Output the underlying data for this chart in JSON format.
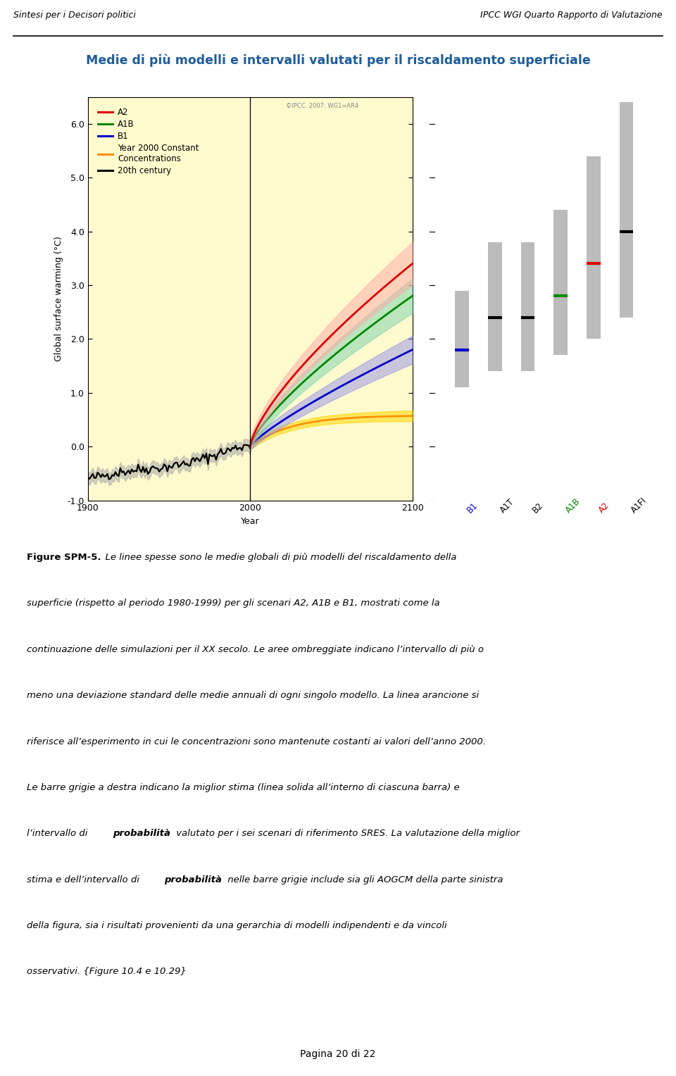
{
  "title": "Medie di più modelli e intervalli valutati per il riscaldamento superficiale",
  "header_left": "Sintesi per i Decisori politici",
  "header_right": "IPCC WGI Quarto Rapporto di Valutazione",
  "ylabel": "Global surface warming (°C)",
  "xlabel": "Year",
  "copyright": "©IPCC  2007: WG1=AR4",
  "plot_bg_color": "#FFFACD",
  "title_color": "#1E5C9B",
  "yticks": [
    -1.0,
    0.0,
    1.0,
    2.0,
    3.0,
    4.0,
    5.0,
    6.0
  ],
  "xticks": [
    1900,
    2000,
    2100
  ],
  "legend_entries": [
    {
      "label": "A2",
      "color": "#DD0000"
    },
    {
      "label": "A1B",
      "color": "#008800"
    },
    {
      "label": "B1",
      "color": "#0000CC"
    },
    {
      "label": "Year 2000 Constant\nConcentrations",
      "color": "#FF8C00"
    },
    {
      "label": "20th century",
      "color": "#000000"
    }
  ],
  "bars": [
    {
      "label": "B1",
      "label_color": "#0000CC",
      "best": 1.8,
      "low": 1.1,
      "high": 2.9
    },
    {
      "label": "A1T",
      "label_color": "#000000",
      "best": 2.4,
      "low": 1.4,
      "high": 3.8
    },
    {
      "label": "B2",
      "label_color": "#000000",
      "best": 2.4,
      "low": 1.4,
      "high": 3.8
    },
    {
      "label": "A1B",
      "label_color": "#008800",
      "best": 2.8,
      "low": 1.7,
      "high": 4.4
    },
    {
      "label": "A2",
      "label_color": "#DD0000",
      "best": 3.4,
      "low": 2.0,
      "high": 5.4
    },
    {
      "label": "A1FI",
      "label_color": "#000000",
      "best": 4.0,
      "low": 2.4,
      "high": 6.4
    }
  ],
  "page_footer": "Pagina 20 di 22"
}
